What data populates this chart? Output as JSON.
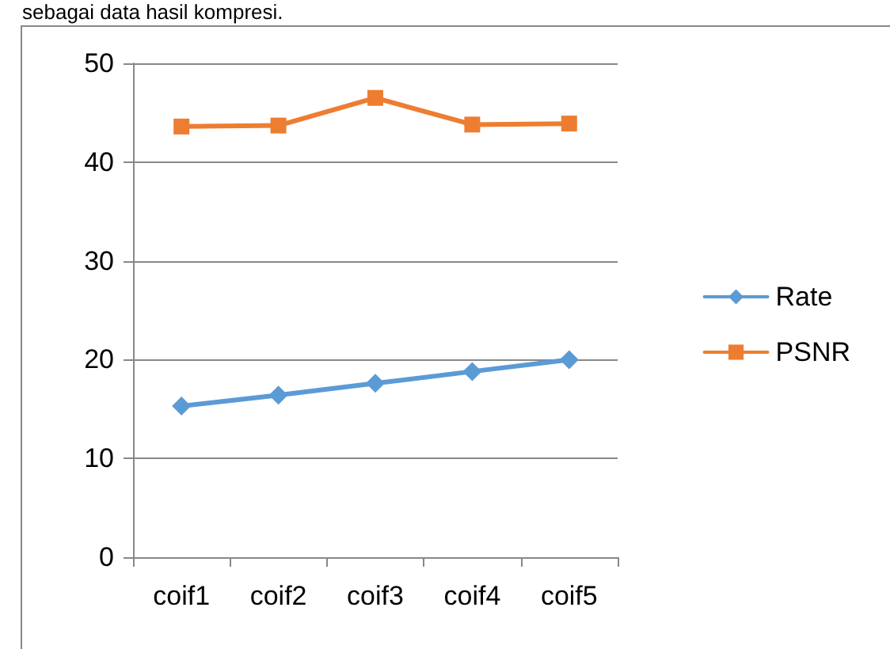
{
  "chart_data": {
    "type": "line",
    "annotations": [
      "sebagai data hasil kompresi."
    ],
    "categories": [
      "coif1",
      "coif2",
      "coif3",
      "coif4",
      "coif5"
    ],
    "series": [
      {
        "name": "Rate",
        "color": "#5b9bd5",
        "marker": "diamond",
        "values": [
          15.3,
          16.4,
          17.6,
          18.8,
          20.0
        ]
      },
      {
        "name": "PSNR",
        "color": "#ed7d31",
        "marker": "square",
        "values": [
          43.6,
          43.7,
          46.5,
          43.8,
          43.9
        ]
      }
    ],
    "ylim": [
      0,
      50
    ],
    "yticks": [
      0,
      10,
      20,
      30,
      40,
      50
    ],
    "grid": "y",
    "legend": "right"
  }
}
